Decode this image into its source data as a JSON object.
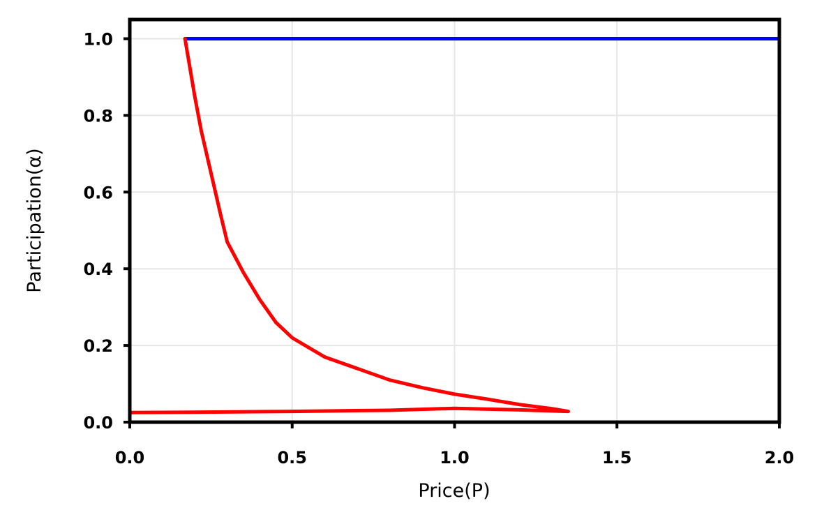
{
  "chart_data": {
    "type": "line",
    "xlabel": "Price(P)",
    "ylabel": "Participation(α)",
    "xlim": [
      0,
      2
    ],
    "ylim": [
      0,
      1.05
    ],
    "xticks": [
      {
        "value": 0,
        "label": "0.0"
      },
      0.5,
      {
        "value": 1,
        "label": "1.0"
      },
      1.5,
      {
        "value": 2,
        "label": "2.0"
      }
    ],
    "yticks": [
      {
        "value": 0,
        "label": "0.0"
      },
      0.2,
      0.4,
      0.6,
      0.8,
      {
        "value": 1,
        "label": "1.0"
      }
    ],
    "grid": true,
    "series": [
      {
        "color": "#0000ff",
        "x": [
          0.17,
          0.5,
          1.0,
          1.5,
          2.0
        ],
        "values": [
          1,
          1,
          1,
          1,
          1
        ]
      },
      {
        "color": "#ff0000",
        "x": [
          0.17,
          0.18,
          0.2,
          0.22,
          0.25,
          0.28,
          0.3,
          0.35,
          0.4,
          0.45,
          0.5,
          0.6,
          0.7,
          0.8,
          0.9,
          1.0,
          1.1,
          1.2,
          1.3,
          1.35,
          1.2,
          1.0,
          0.8,
          0.5,
          0.2,
          0.0
        ],
        "values": [
          1.0,
          0.95,
          0.85,
          0.76,
          0.65,
          0.54,
          0.47,
          0.39,
          0.32,
          0.26,
          0.22,
          0.17,
          0.14,
          0.11,
          0.09,
          0.073,
          0.06,
          0.046,
          0.035,
          0.028,
          0.032,
          0.036,
          0.031,
          0.028,
          0.026,
          0.025
        ]
      }
    ]
  }
}
